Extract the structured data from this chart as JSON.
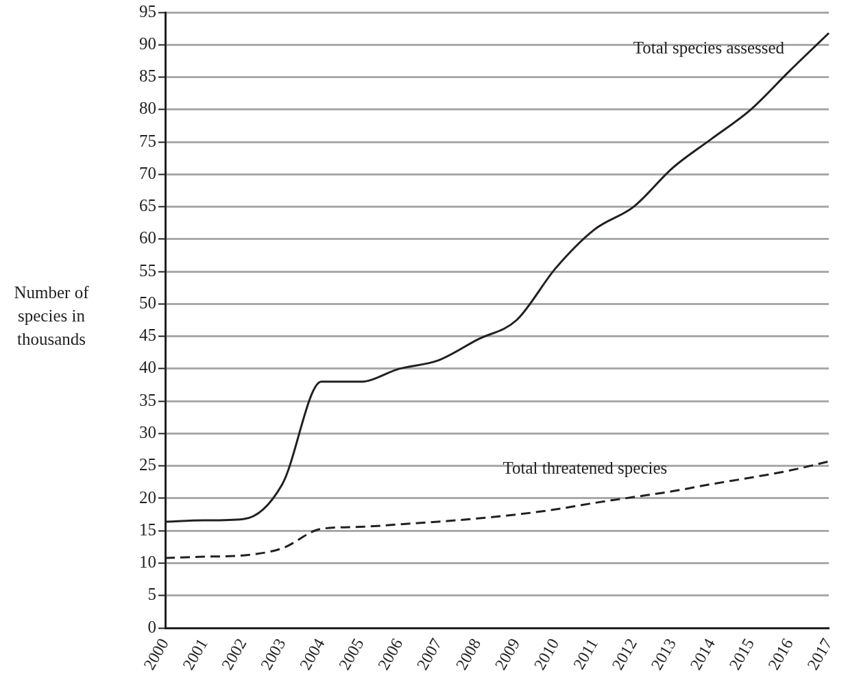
{
  "chart_data": {
    "type": "line",
    "ylabel": "Number of species in thousands",
    "categories": [
      "2000",
      "2001",
      "2002",
      "2003",
      "2004",
      "2005",
      "2006",
      "2007",
      "2008",
      "2009",
      "2010",
      "2011",
      "2012",
      "2013",
      "2014",
      "2015",
      "2016",
      "2017"
    ],
    "series": [
      {
        "name": "Total species assessed",
        "color": "#231f20",
        "line_style": "solid",
        "values": [
          16.4,
          16.6,
          16.8,
          22.2,
          38,
          38,
          40,
          41.3,
          44.5,
          47.5,
          55.5,
          61.5,
          65,
          71,
          75.5,
          80,
          86,
          91.8
        ]
      },
      {
        "name": "Total threatened species",
        "color": "#231f20",
        "line_style": "dashed",
        "values": [
          10.8,
          11.0,
          11.2,
          12.3,
          15.3,
          15.6,
          16.0,
          16.4,
          16.9,
          17.5,
          18.3,
          19.3,
          20.2,
          21.1,
          22.2,
          23.2,
          24.3,
          25.7
        ]
      }
    ],
    "ylim": [
      0,
      95
    ],
    "yticks": [
      0,
      5,
      10,
      15,
      20,
      25,
      30,
      35,
      40,
      45,
      50,
      55,
      60,
      65,
      70,
      75,
      80,
      85,
      90,
      95
    ],
    "grid": "y",
    "legend": false,
    "marker": "none"
  }
}
